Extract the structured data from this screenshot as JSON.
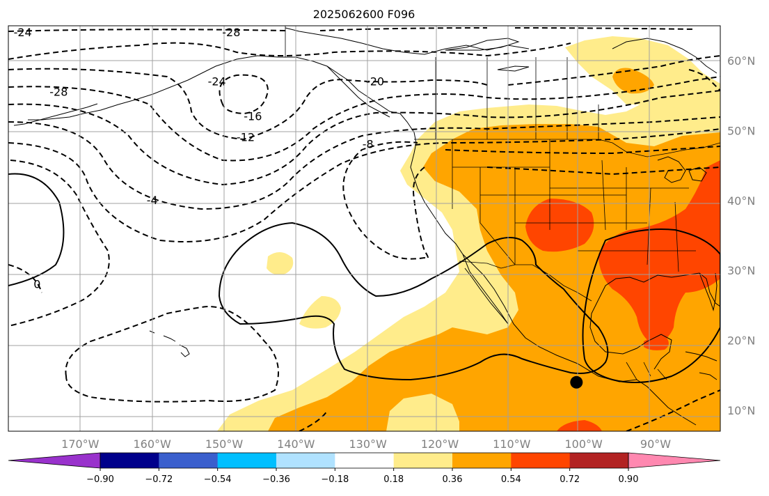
{
  "title": "2025062600 F096",
  "map": {
    "projection": "PlateCarree",
    "lon_range": [
      -180,
      -81
    ],
    "lat_range": [
      7,
      65
    ],
    "lon_ticks": [
      {
        "value": -170,
        "label": "170°W"
      },
      {
        "value": -160,
        "label": "160°W"
      },
      {
        "value": -150,
        "label": "150°W"
      },
      {
        "value": -140,
        "label": "140°W"
      },
      {
        "value": -130,
        "label": "130°W"
      },
      {
        "value": -120,
        "label": "120°W"
      },
      {
        "value": -110,
        "label": "110°W"
      },
      {
        "value": -100,
        "label": "100°W"
      },
      {
        "value": -90,
        "label": "90°W"
      }
    ],
    "lat_ticks": [
      {
        "value": 60,
        "label": "60°N"
      },
      {
        "value": 50,
        "label": "50°N"
      },
      {
        "value": 40,
        "label": "40°N"
      },
      {
        "value": 30,
        "label": "30°N"
      },
      {
        "value": 20,
        "label": "20°N"
      },
      {
        "value": 10,
        "label": "10°N"
      }
    ],
    "gridlines": true,
    "marker": {
      "lon": -101,
      "lat": 14,
      "color": "#000000"
    }
  },
  "contour_labels": [
    {
      "text": "-24",
      "lon": -178,
      "lat": 63.5
    },
    {
      "text": "-28",
      "lon": -149,
      "lat": 63.5
    },
    {
      "text": "-28",
      "lon": -173,
      "lat": 55
    },
    {
      "text": "-24",
      "lon": -151,
      "lat": 56.5
    },
    {
      "text": "-20",
      "lon": -129,
      "lat": 56.5
    },
    {
      "text": "-16",
      "lon": -146,
      "lat": 51.5
    },
    {
      "text": "-12",
      "lon": -147,
      "lat": 48.5
    },
    {
      "text": "-8",
      "lon": -130,
      "lat": 47.5
    },
    {
      "text": "-4",
      "lon": -160,
      "lat": 39.5
    },
    {
      "text": "0",
      "lon": -176,
      "lat": 27.5
    }
  ],
  "colorbar": {
    "colors": [
      "#9932cc",
      "#00008b",
      "#3a5fcd",
      "#00bfff",
      "#b0e2ff",
      "#ffffff",
      "#ffec8b",
      "#ffa500",
      "#ff4500",
      "#b22222",
      "#ff88b0"
    ],
    "tick_labels": [
      "−0.90",
      "−0.72",
      "−0.54",
      "−0.36",
      "−0.18",
      "0.18",
      "0.36",
      "0.54",
      "0.72",
      "0.90"
    ],
    "extend": "both"
  }
}
